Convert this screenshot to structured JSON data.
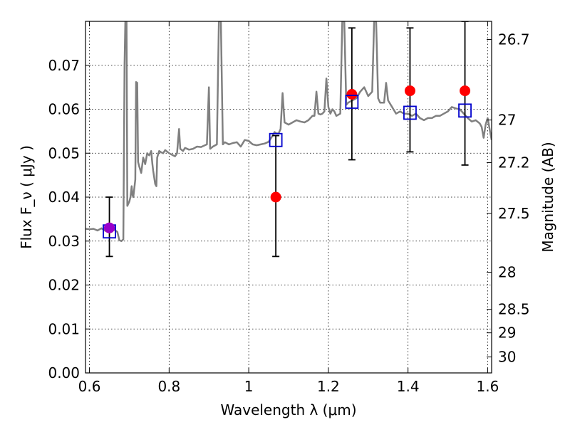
{
  "chart_data": {
    "type": "scatter",
    "xlabel": "Wavelength  λ (μm)",
    "ylabel": "Flux  F_ν  ( μJy )",
    "ylabel_right": "Magnitude (AB)",
    "xlim": [
      0.59,
      1.61
    ],
    "ylim": [
      0.0,
      0.08
    ],
    "x_ticks": [
      0.6,
      0.8,
      1.0,
      1.2,
      1.4,
      1.6
    ],
    "x_tick_labels": [
      "0.6",
      "0.8",
      "1",
      "1.2",
      "1.4",
      "1.6"
    ],
    "y_ticks": [
      0.0,
      0.01,
      0.02,
      0.03,
      0.04,
      0.05,
      0.06,
      0.07
    ],
    "y_tick_labels": [
      "0.00",
      "0.01",
      "0.02",
      "0.03",
      "0.04",
      "0.05",
      "0.06",
      "0.07"
    ],
    "right_ticks": [
      {
        "label": "26.7",
        "mag": 26.7
      },
      {
        "label": "27",
        "mag": 27.0
      },
      {
        "label": "27.2",
        "mag": 27.2
      },
      {
        "label": "27.5",
        "mag": 27.5
      },
      {
        "label": "28",
        "mag": 28.0
      },
      {
        "label": "28.5",
        "mag": 28.5
      },
      {
        "label": "29",
        "mag": 29.0
      },
      {
        "label": "30",
        "mag": 30.0
      }
    ],
    "grid": true,
    "series": [
      {
        "kind": "spectrum",
        "color": "#808080",
        "points": [
          [
            0.59,
            0.0328
          ],
          [
            0.6,
            0.0327
          ],
          [
            0.61,
            0.0328
          ],
          [
            0.62,
            0.0324
          ],
          [
            0.63,
            0.0329
          ],
          [
            0.64,
            0.0323
          ],
          [
            0.65,
            0.033
          ],
          [
            0.66,
            0.0327
          ],
          [
            0.67,
            0.0321
          ],
          [
            0.675,
            0.0302
          ],
          [
            0.68,
            0.03
          ],
          [
            0.685,
            0.0304
          ],
          [
            0.688,
            0.07
          ],
          [
            0.69,
            0.08
          ],
          [
            0.693,
            0.08
          ],
          [
            0.695,
            0.038
          ],
          [
            0.7,
            0.039
          ],
          [
            0.703,
            0.04
          ],
          [
            0.706,
            0.0425
          ],
          [
            0.708,
            0.0405
          ],
          [
            0.71,
            0.04
          ],
          [
            0.715,
            0.044
          ],
          [
            0.717,
            0.0662
          ],
          [
            0.72,
            0.066
          ],
          [
            0.722,
            0.048
          ],
          [
            0.725,
            0.047
          ],
          [
            0.73,
            0.0455
          ],
          [
            0.735,
            0.049
          ],
          [
            0.74,
            0.0475
          ],
          [
            0.745,
            0.05
          ],
          [
            0.75,
            0.0495
          ],
          [
            0.755,
            0.0505
          ],
          [
            0.758,
            0.0475
          ],
          [
            0.76,
            0.046
          ],
          [
            0.765,
            0.043
          ],
          [
            0.768,
            0.0425
          ],
          [
            0.77,
            0.049
          ],
          [
            0.775,
            0.0505
          ],
          [
            0.78,
            0.0502
          ],
          [
            0.785,
            0.05
          ],
          [
            0.79,
            0.0507
          ],
          [
            0.8,
            0.05
          ],
          [
            0.81,
            0.0495
          ],
          [
            0.815,
            0.0493
          ],
          [
            0.82,
            0.05
          ],
          [
            0.825,
            0.0555
          ],
          [
            0.828,
            0.051
          ],
          [
            0.835,
            0.0505
          ],
          [
            0.84,
            0.0512
          ],
          [
            0.85,
            0.0508
          ],
          [
            0.86,
            0.051
          ],
          [
            0.87,
            0.0515
          ],
          [
            0.88,
            0.0514
          ],
          [
            0.89,
            0.0518
          ],
          [
            0.895,
            0.052
          ],
          [
            0.9,
            0.065
          ],
          [
            0.903,
            0.051
          ],
          [
            0.91,
            0.0515
          ],
          [
            0.92,
            0.052
          ],
          [
            0.925,
            0.08
          ],
          [
            0.93,
            0.08
          ],
          [
            0.935,
            0.052
          ],
          [
            0.94,
            0.0525
          ],
          [
            0.95,
            0.052
          ],
          [
            0.96,
            0.0523
          ],
          [
            0.97,
            0.0525
          ],
          [
            0.98,
            0.0515
          ],
          [
            0.99,
            0.053
          ],
          [
            1.0,
            0.0528
          ],
          [
            1.01,
            0.052
          ],
          [
            1.02,
            0.0518
          ],
          [
            1.03,
            0.052
          ],
          [
            1.04,
            0.0522
          ],
          [
            1.05,
            0.0526
          ],
          [
            1.06,
            0.054
          ],
          [
            1.065,
            0.0548
          ],
          [
            1.07,
            0.0545
          ],
          [
            1.075,
            0.0545
          ],
          [
            1.08,
            0.0555
          ],
          [
            1.085,
            0.0637
          ],
          [
            1.09,
            0.057
          ],
          [
            1.1,
            0.0565
          ],
          [
            1.11,
            0.057
          ],
          [
            1.12,
            0.0575
          ],
          [
            1.13,
            0.0572
          ],
          [
            1.14,
            0.057
          ],
          [
            1.15,
            0.0575
          ],
          [
            1.16,
            0.0585
          ],
          [
            1.165,
            0.0585
          ],
          [
            1.17,
            0.064
          ],
          [
            1.175,
            0.059
          ],
          [
            1.18,
            0.0588
          ],
          [
            1.185,
            0.059
          ],
          [
            1.19,
            0.0595
          ],
          [
            1.195,
            0.067
          ],
          [
            1.2,
            0.0605
          ],
          [
            1.205,
            0.059
          ],
          [
            1.21,
            0.06
          ],
          [
            1.215,
            0.0595
          ],
          [
            1.22,
            0.0585
          ],
          [
            1.23,
            0.059
          ],
          [
            1.235,
            0.08
          ],
          [
            1.24,
            0.08
          ],
          [
            1.245,
            0.061
          ],
          [
            1.25,
            0.0615
          ],
          [
            1.26,
            0.062
          ],
          [
            1.27,
            0.0625
          ],
          [
            1.28,
            0.064
          ],
          [
            1.29,
            0.065
          ],
          [
            1.3,
            0.063
          ],
          [
            1.31,
            0.064
          ],
          [
            1.315,
            0.08
          ],
          [
            1.32,
            0.08
          ],
          [
            1.325,
            0.0625
          ],
          [
            1.33,
            0.0615
          ],
          [
            1.34,
            0.0615
          ],
          [
            1.345,
            0.066
          ],
          [
            1.35,
            0.062
          ],
          [
            1.36,
            0.0605
          ],
          [
            1.37,
            0.059
          ],
          [
            1.38,
            0.0595
          ],
          [
            1.39,
            0.059
          ],
          [
            1.4,
            0.059
          ],
          [
            1.41,
            0.0585
          ],
          [
            1.42,
            0.059
          ],
          [
            1.43,
            0.058
          ],
          [
            1.44,
            0.0575
          ],
          [
            1.45,
            0.058
          ],
          [
            1.46,
            0.058
          ],
          [
            1.47,
            0.0585
          ],
          [
            1.48,
            0.0585
          ],
          [
            1.49,
            0.059
          ],
          [
            1.5,
            0.0595
          ],
          [
            1.51,
            0.0605
          ],
          [
            1.52,
            0.0602
          ],
          [
            1.53,
            0.06
          ],
          [
            1.54,
            0.059
          ],
          [
            1.55,
            0.058
          ],
          [
            1.56,
            0.0572
          ],
          [
            1.57,
            0.0575
          ],
          [
            1.58,
            0.0568
          ],
          [
            1.585,
            0.056
          ],
          [
            1.59,
            0.0535
          ],
          [
            1.595,
            0.0565
          ],
          [
            1.6,
            0.058
          ],
          [
            1.605,
            0.0555
          ],
          [
            1.61,
            0.053
          ]
        ]
      },
      {
        "kind": "observed",
        "color": "#ff0000",
        "points": [
          {
            "x": 0.65,
            "y": 0.033,
            "ylo": 0.0265,
            "yhi": 0.04
          },
          {
            "x": 1.068,
            "y": 0.04,
            "ylo": 0.0265,
            "yhi": 0.054
          },
          {
            "x": 1.259,
            "y": 0.0634,
            "ylo": 0.0485,
            "yhi": 0.0785
          },
          {
            "x": 1.405,
            "y": 0.0642,
            "ylo": 0.0503,
            "yhi": 0.0785
          },
          {
            "x": 1.543,
            "y": 0.0642,
            "ylo": 0.0473,
            "yhi": 0.08
          }
        ]
      },
      {
        "kind": "model",
        "color": "#0000cc",
        "points": [
          {
            "x": 0.65,
            "y": 0.0322
          },
          {
            "x": 1.068,
            "y": 0.053
          },
          {
            "x": 1.259,
            "y": 0.0617
          },
          {
            "x": 1.405,
            "y": 0.0592
          },
          {
            "x": 1.543,
            "y": 0.0597
          }
        ]
      },
      {
        "kind": "overlap",
        "color": "#9900cc",
        "points": [
          {
            "x": 0.65,
            "y": 0.033
          }
        ]
      }
    ]
  }
}
